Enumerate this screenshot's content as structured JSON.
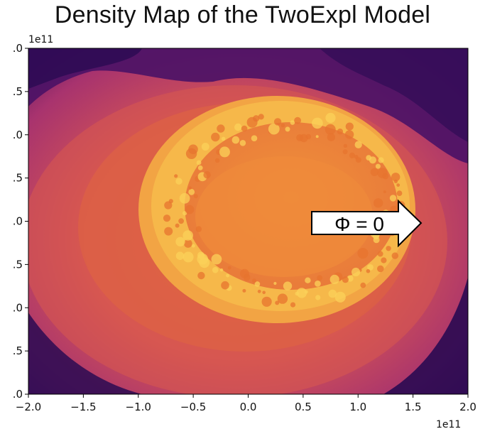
{
  "title": "Density Map of the TwoExpl Model",
  "chart_data": {
    "type": "heatmap",
    "title": "Density Map of the TwoExpl Model",
    "colormap": "inferno",
    "x_offset_label": "1e11",
    "y_offset_label": "1e11",
    "xlim": [
      -2.0,
      2.0
    ],
    "ylim": [
      -2.0,
      2.0
    ],
    "x_ticks": [
      "−2.0",
      "−1.5",
      "−1.0",
      "−0.5",
      "0.0",
      "0.5",
      "1.0",
      "1.5",
      "2.0"
    ],
    "y_ticks_visible": [
      ".0",
      ".5",
      ".0",
      ".5",
      ".0",
      ".5",
      ".0",
      ".5",
      ".0"
    ],
    "annotation": {
      "text": "Φ = 0",
      "shape": "right-arrow"
    },
    "colors": {
      "shell": "#f5b142",
      "interior": "#ee8a3a",
      "outer": "#c84b63",
      "edge": "#3a0d5e"
    }
  }
}
